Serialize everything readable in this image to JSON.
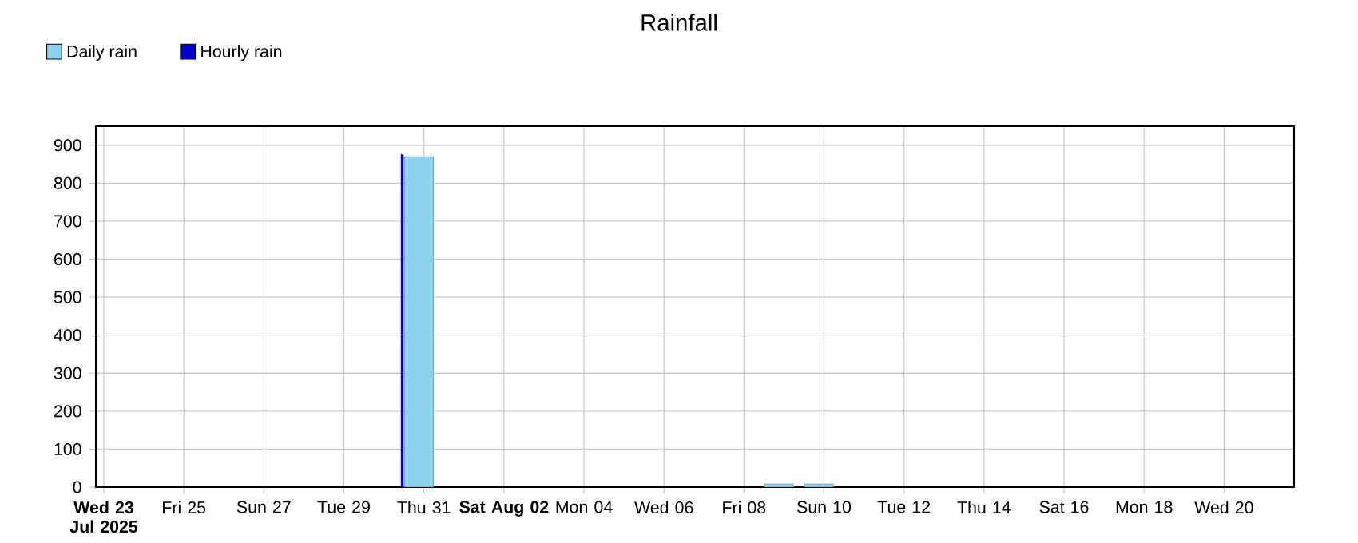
{
  "chart_data": {
    "type": "bar",
    "title": "Rainfall",
    "x": [
      "2025-07-30T21:00",
      "2025-08-08T21:00",
      "2025-08-09T21:00"
    ],
    "series": [
      {
        "name": "Daily rain",
        "color": "#8dd3f0",
        "values": [
          870,
          8,
          8
        ]
      },
      {
        "name": "Hourly rain",
        "color": "#0000cc",
        "x": [
          "2025-07-30T11:00",
          "2025-08-09T11:00"
        ],
        "values": [
          875,
          2
        ]
      }
    ],
    "xlim": [
      "2025-07-22T19:12",
      "2025-08-21T18:00"
    ],
    "xticks": [
      {
        "value": "2025-07-23",
        "label": "Wed 23 Jul 2025"
      },
      {
        "value": "2025-07-25",
        "label": "Fri 25"
      },
      {
        "value": "2025-07-27",
        "label": "Sun 27"
      },
      {
        "value": "2025-07-29",
        "label": "Tue 29"
      },
      {
        "value": "2025-07-31",
        "label": "Thu 31"
      },
      {
        "value": "2025-08-02",
        "label": "Sat Aug 02"
      },
      {
        "value": "2025-08-04",
        "label": "Mon 04"
      },
      {
        "value": "2025-08-06",
        "label": "Wed 06"
      },
      {
        "value": "2025-08-08",
        "label": "Fri 08"
      },
      {
        "value": "2025-08-10",
        "label": "Sun 10"
      },
      {
        "value": "2025-08-12",
        "label": "Tue 12"
      },
      {
        "value": "2025-08-14",
        "label": "Thu 14"
      },
      {
        "value": "2025-08-16",
        "label": "Sat 16"
      },
      {
        "value": "2025-08-18",
        "label": "Mon 18"
      },
      {
        "value": "2025-08-20",
        "label": "Wed 20"
      }
    ],
    "ylim": [
      0,
      950
    ],
    "yticks": [
      0,
      100,
      200,
      300,
      400,
      500,
      600,
      700,
      800,
      900
    ],
    "grid": true,
    "legend": "top left"
  }
}
